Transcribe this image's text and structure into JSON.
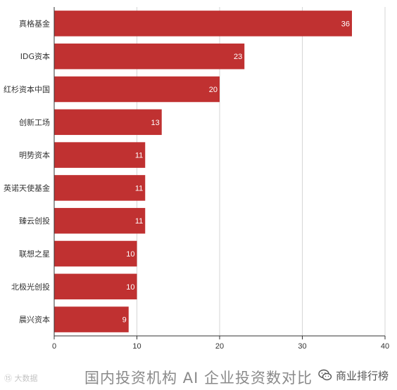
{
  "chart_data": {
    "type": "bar",
    "orientation": "horizontal",
    "categories": [
      "真格基金",
      "IDG资本",
      "红杉资本中国",
      "创新工场",
      "明势资本",
      "英诺天使基金",
      "臻云创投",
      "联想之星",
      "北极光创投",
      "晨兴资本"
    ],
    "values": [
      36,
      23,
      20,
      13,
      11,
      11,
      11,
      10,
      10,
      9
    ],
    "xlim": [
      0,
      40
    ],
    "xticks": [
      "0",
      "10",
      "20",
      "30",
      "40"
    ],
    "grid": true,
    "legend": "none",
    "bar_color": "#c03131"
  },
  "caption": "国内投资机构 AI 企业投资数对比",
  "watermark_left": "⑮ 大数据",
  "watermark_right": "商业排行榜"
}
